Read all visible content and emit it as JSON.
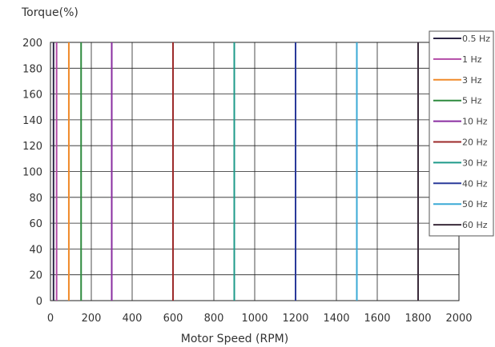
{
  "chart_data": {
    "type": "line",
    "title": "",
    "xlabel": "Motor Speed  (RPM)",
    "ylabel": "Torque(%)",
    "xlim": [
      0,
      2000
    ],
    "ylim": [
      0,
      200
    ],
    "x_ticks": [
      0,
      200,
      400,
      600,
      800,
      1000,
      1200,
      1400,
      1600,
      1800,
      2000
    ],
    "y_ticks": [
      0,
      20,
      40,
      60,
      80,
      100,
      120,
      140,
      160,
      180,
      200
    ],
    "grid": true,
    "legend_position": "right",
    "series": [
      {
        "name": "0.5 Hz",
        "color": "#2b2545",
        "x": [
          15,
          15
        ],
        "y": [
          0,
          200
        ]
      },
      {
        "name": "1 Hz",
        "color": "#b24aa6",
        "x": [
          30,
          30
        ],
        "y": [
          0,
          200
        ]
      },
      {
        "name": "3 Hz",
        "color": "#f08a2a",
        "x": [
          90,
          90
        ],
        "y": [
          0,
          200
        ]
      },
      {
        "name": "5 Hz",
        "color": "#2e8a3e",
        "x": [
          150,
          150
        ],
        "y": [
          0,
          200
        ]
      },
      {
        "name": "10 Hz",
        "color": "#8a2ea0",
        "x": [
          300,
          300
        ],
        "y": [
          0,
          200
        ]
      },
      {
        "name": "20 Hz",
        "color": "#9c2a2a",
        "x": [
          600,
          600
        ],
        "y": [
          0,
          200
        ]
      },
      {
        "name": "30 Hz",
        "color": "#1e9a8a",
        "x": [
          900,
          900
        ],
        "y": [
          0,
          200
        ]
      },
      {
        "name": "40 Hz",
        "color": "#2a3a9a",
        "x": [
          1200,
          1200
        ],
        "y": [
          0,
          200
        ]
      },
      {
        "name": "50 Hz",
        "color": "#3aaad6",
        "x": [
          1500,
          1500
        ],
        "y": [
          0,
          200
        ]
      },
      {
        "name": "60 Hz",
        "color": "#3a2a3a",
        "x": [
          1800,
          1800
        ],
        "y": [
          0,
          200
        ]
      }
    ]
  }
}
